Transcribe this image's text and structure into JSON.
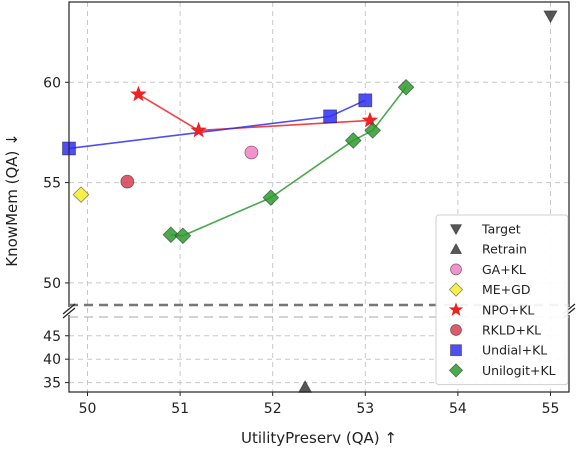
{
  "chart_data": {
    "type": "scatter",
    "xlabel": "UtilityPreserv (QA) ↑",
    "ylabel": "KnowMem (QA) ↓",
    "xlim": [
      49.8,
      55.2
    ],
    "x_ticks": [
      "50",
      "51",
      "52",
      "53",
      "54",
      "55"
    ],
    "y_upper_range": [
      48.9,
      64
    ],
    "y_upper_ticks": [
      "50",
      "55",
      "60"
    ],
    "y_lower_range": [
      33,
      49
    ],
    "y_lower_ticks": [
      "35",
      "40",
      "45"
    ],
    "grid": true,
    "legend_position": "bottom-right",
    "axis_break": true,
    "series": [
      {
        "name": "Target",
        "marker": "triangle-down",
        "color": "#3a3a3a",
        "line": false,
        "points": [
          [
            55.0,
            63.3
          ]
        ]
      },
      {
        "name": "Retrain",
        "marker": "triangle-up",
        "color": "#3a3a3a",
        "line": false,
        "points": [
          [
            52.35,
            34.0
          ]
        ]
      },
      {
        "name": "GA+KL",
        "marker": "circle",
        "color": "#f27fc2",
        "line": false,
        "points": [
          [
            51.77,
            56.5
          ]
        ]
      },
      {
        "name": "ME+GD",
        "marker": "diamond",
        "color": "#f4ec2a",
        "line": false,
        "points": [
          [
            49.93,
            54.4
          ]
        ]
      },
      {
        "name": "NPO+KL",
        "marker": "star",
        "color": "#ee2222",
        "line": true,
        "points": [
          [
            50.55,
            59.4
          ],
          [
            51.2,
            57.6
          ],
          [
            53.05,
            58.1
          ]
        ]
      },
      {
        "name": "RKLD+KL",
        "marker": "circle",
        "color": "#d83e55",
        "line": false,
        "points": [
          [
            50.43,
            55.05
          ]
        ]
      },
      {
        "name": "Undial+KL",
        "marker": "square",
        "color": "#2f2ff0",
        "line": true,
        "points": [
          [
            49.8,
            56.7
          ],
          [
            52.62,
            58.3
          ],
          [
            53.0,
            59.1
          ]
        ]
      },
      {
        "name": "Unilogit+KL",
        "marker": "diamond",
        "color": "#2e9a2e",
        "line": true,
        "points": [
          [
            50.9,
            52.4
          ],
          [
            51.03,
            52.35
          ],
          [
            51.98,
            54.25
          ],
          [
            52.87,
            57.1
          ],
          [
            53.08,
            57.6
          ],
          [
            53.44,
            59.75
          ]
        ]
      }
    ]
  }
}
